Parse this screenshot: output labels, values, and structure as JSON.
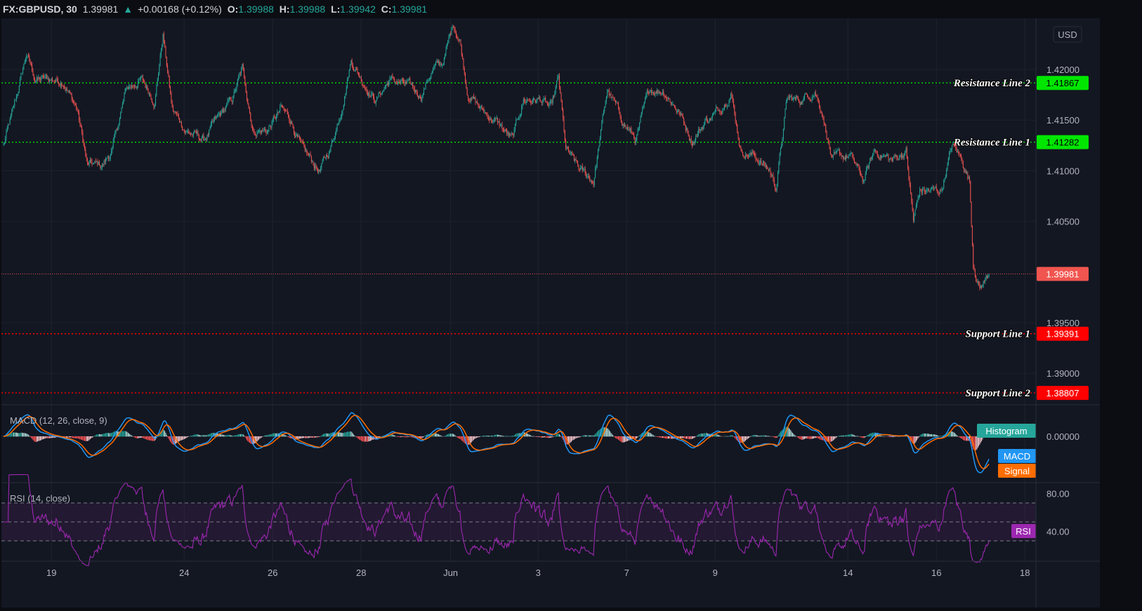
{
  "header": {
    "symbol": "FX:GBPUSD, 30",
    "last": "1.39981",
    "change": "+0.00168 (+0.12%)",
    "o_label": "O:",
    "o": "1.39988",
    "h_label": "H:",
    "h": "1.39988",
    "l_label": "L:",
    "l": "1.39942",
    "c_label": "C:",
    "c": "1.39981"
  },
  "currency": "USD",
  "colors": {
    "up": "#26a69a",
    "down": "#ef5350",
    "resistance": "#00e600",
    "support": "#ff0000",
    "macd": "#2196f3",
    "signal": "#ff6d00",
    "rsi": "#9c27b0",
    "bg": "#131722"
  },
  "chart_data": {
    "type": "candlestick",
    "title": "FX:GBPUSD, 30",
    "price_ticks": [
      "1.42000",
      "1.41500",
      "1.41000",
      "1.40500",
      "1.39500",
      "1.39000"
    ],
    "price_tick_values": [
      1.42,
      1.415,
      1.41,
      1.405,
      1.395,
      1.39
    ],
    "time_ticks": [
      {
        "label": "19",
        "bar": 52
      },
      {
        "label": "24",
        "bar": 196
      },
      {
        "label": "26",
        "bar": 292
      },
      {
        "label": "28",
        "bar": 388
      },
      {
        "label": "Jun",
        "bar": 485
      },
      {
        "label": "3",
        "bar": 580
      },
      {
        "label": "7",
        "bar": 676
      },
      {
        "label": "9",
        "bar": 772
      },
      {
        "label": "14",
        "bar": 916
      },
      {
        "label": "16",
        "bar": 1012
      },
      {
        "label": "18",
        "bar": 1108
      }
    ],
    "close_keypoints": [
      [
        0,
        1.4125
      ],
      [
        11,
        1.416
      ],
      [
        25,
        1.4215
      ],
      [
        34,
        1.419
      ],
      [
        50,
        1.419
      ],
      [
        65,
        1.419
      ],
      [
        80,
        1.416
      ],
      [
        91,
        1.4105
      ],
      [
        107,
        1.4105
      ],
      [
        118,
        1.412
      ],
      [
        133,
        1.418
      ],
      [
        149,
        1.419
      ],
      [
        164,
        1.417
      ],
      [
        173,
        1.4235
      ],
      [
        183,
        1.416
      ],
      [
        198,
        1.414
      ],
      [
        217,
        1.413
      ],
      [
        232,
        1.415
      ],
      [
        248,
        1.417
      ],
      [
        259,
        1.42
      ],
      [
        271,
        1.414
      ],
      [
        286,
        1.414
      ],
      [
        301,
        1.416
      ],
      [
        312,
        1.415
      ],
      [
        324,
        1.412
      ],
      [
        343,
        1.41
      ],
      [
        354,
        1.412
      ],
      [
        366,
        1.416
      ],
      [
        377,
        1.421
      ],
      [
        389,
        1.419
      ],
      [
        404,
        1.417
      ],
      [
        419,
        1.419
      ],
      [
        434,
        1.4185
      ],
      [
        453,
        1.4175
      ],
      [
        465,
        1.42
      ],
      [
        476,
        1.4205
      ],
      [
        488,
        1.4245
      ],
      [
        495,
        1.423
      ],
      [
        503,
        1.418
      ],
      [
        518,
        1.416
      ],
      [
        533,
        1.415
      ],
      [
        552,
        1.413
      ],
      [
        564,
        1.417
      ],
      [
        583,
        1.417
      ],
      [
        594,
        1.416
      ],
      [
        602,
        1.419
      ],
      [
        610,
        1.412
      ],
      [
        625,
        1.41
      ],
      [
        640,
        1.409
      ],
      [
        655,
        1.418
      ],
      [
        671,
        1.415
      ],
      [
        686,
        1.413
      ],
      [
        701,
        1.418
      ],
      [
        716,
        1.418
      ],
      [
        732,
        1.416
      ],
      [
        747,
        1.413
      ],
      [
        762,
        1.415
      ],
      [
        777,
        1.416
      ],
      [
        789,
        1.418
      ],
      [
        800,
        1.412
      ],
      [
        815,
        1.4115
      ],
      [
        831,
        1.41
      ],
      [
        838,
        1.4085
      ],
      [
        850,
        1.417
      ],
      [
        865,
        1.417
      ],
      [
        880,
        1.418
      ],
      [
        888,
        1.416
      ],
      [
        899,
        1.411
      ],
      [
        918,
        1.4115
      ],
      [
        933,
        1.409
      ],
      [
        945,
        1.412
      ],
      [
        964,
        1.411
      ],
      [
        979,
        1.412
      ],
      [
        987,
        1.405
      ],
      [
        994,
        1.408
      ],
      [
        1017,
        1.408
      ],
      [
        1029,
        1.4125
      ],
      [
        1040,
        1.411
      ],
      [
        1048,
        1.409
      ],
      [
        1052,
        1.401
      ],
      [
        1059,
        1.3985
      ],
      [
        1069,
        1.3998
      ]
    ],
    "levels": [
      {
        "label": "Resistance Line 2",
        "price": "1.41867",
        "value": 1.41867,
        "kind": "resistance"
      },
      {
        "label": "Resistance Line 1",
        "price": "1.41282",
        "value": 1.41282,
        "kind": "resistance"
      },
      {
        "label": "Support Line 1",
        "price": "1.39391",
        "value": 1.39391,
        "kind": "support"
      },
      {
        "label": "Support Line 2",
        "price": "1.38807",
        "value": 1.38807,
        "kind": "support"
      }
    ],
    "current_price": {
      "label": "1.39981",
      "value": 1.39981
    },
    "macd": {
      "title": "MACD (12, 26, close, 9)",
      "zero_label": "0.00000",
      "legend": [
        "Histogram",
        "MACD",
        "Signal"
      ]
    },
    "rsi": {
      "title": "RSI (14, close)",
      "ticks": [
        "80.00",
        "40.00"
      ],
      "tick_values": [
        80,
        40
      ],
      "bands": [
        70,
        50,
        30
      ],
      "legend": "RSI"
    }
  }
}
